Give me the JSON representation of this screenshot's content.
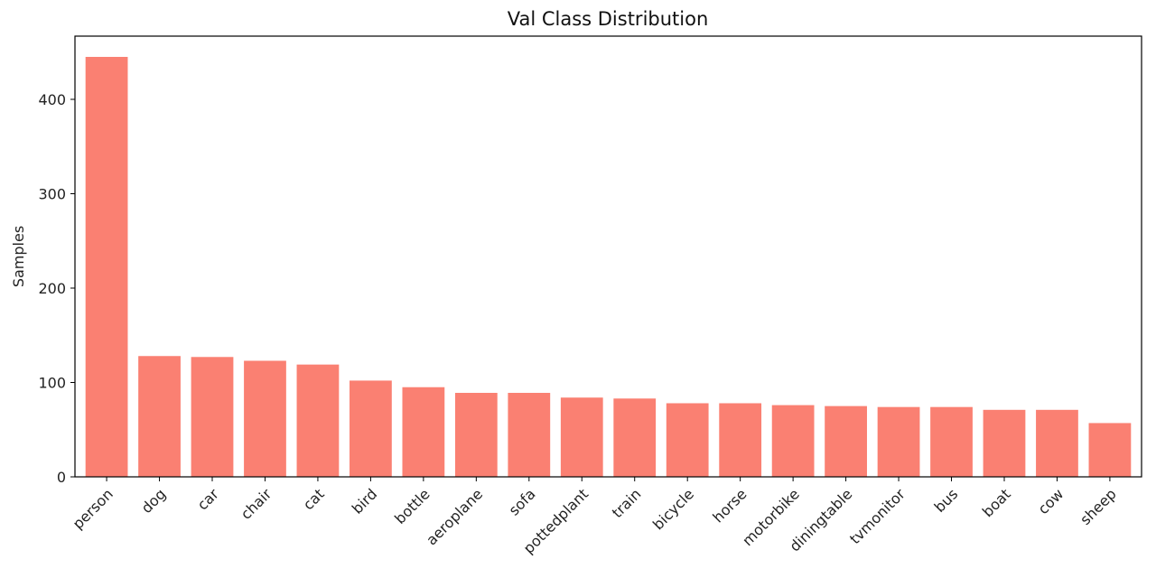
{
  "chart_data": {
    "type": "bar",
    "title": "Val Class Distribution",
    "xlabel": "",
    "ylabel": "Samples",
    "categories": [
      "person",
      "dog",
      "car",
      "chair",
      "cat",
      "bird",
      "bottle",
      "aeroplane",
      "sofa",
      "pottedplant",
      "train",
      "bicycle",
      "horse",
      "motorbike",
      "diningtable",
      "tvmonitor",
      "bus",
      "boat",
      "cow",
      "sheep"
    ],
    "values": [
      445,
      128,
      127,
      123,
      119,
      102,
      95,
      89,
      89,
      84,
      83,
      78,
      78,
      76,
      75,
      74,
      74,
      71,
      71,
      57
    ],
    "ylim": [
      0,
      467
    ],
    "yticks": [
      0,
      100,
      200,
      300,
      400
    ],
    "grid": false,
    "bar_color": "#fa8072"
  }
}
